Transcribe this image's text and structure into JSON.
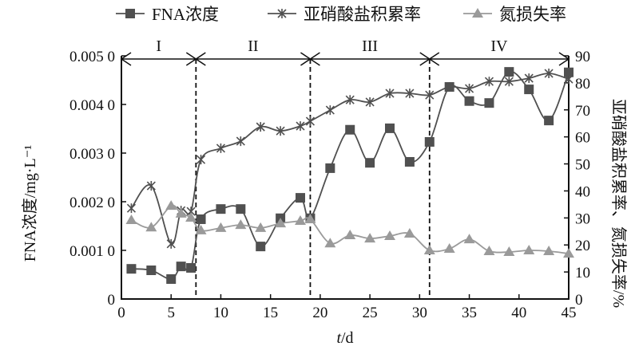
{
  "chart_data": {
    "type": "line",
    "xlabel_italic": "t",
    "xlabel_rest": "/d",
    "ylabel_left": "FNA浓度/mg·L⁻¹",
    "ylabel_right": "亚硝酸盐积累率、氮损失率/%",
    "xlim": [
      0,
      45
    ],
    "ylim_left": [
      0,
      0.005
    ],
    "ylim_right": [
      0,
      90
    ],
    "x_ticks": [
      0,
      5,
      10,
      15,
      20,
      25,
      30,
      35,
      40,
      45
    ],
    "y_left_ticks": [
      "0",
      "0.001 0",
      "0.002 0",
      "0.003 0",
      "0.004 0",
      "0.005 0"
    ],
    "y_left_tick_values": [
      0,
      0.001,
      0.002,
      0.003,
      0.004,
      0.005
    ],
    "y_right_ticks": [
      0,
      10,
      20,
      30,
      40,
      50,
      60,
      70,
      80,
      90
    ],
    "grid": false,
    "legend_position": "top",
    "stages": [
      {
        "label": "I",
        "from": 0,
        "to": 7.5
      },
      {
        "label": "II",
        "from": 7.5,
        "to": 19
      },
      {
        "label": "III",
        "from": 19,
        "to": 31
      },
      {
        "label": "IV",
        "from": 31,
        "to": 45
      }
    ],
    "x": [
      1,
      3,
      5,
      6,
      7,
      8,
      10,
      12,
      14,
      16,
      18,
      19,
      21,
      23,
      25,
      27,
      29,
      31,
      33,
      35,
      37,
      39,
      41,
      43,
      45
    ],
    "series": [
      {
        "name": "FNA浓度",
        "axis": "left",
        "marker": "square",
        "color": "#505050",
        "values": [
          0.00062,
          0.00059,
          0.00041,
          0.00067,
          0.00064,
          0.00164,
          0.00185,
          0.00185,
          0.00108,
          0.00166,
          0.00208,
          0.00166,
          0.00269,
          0.00348,
          0.0028,
          0.00351,
          0.00282,
          0.00323,
          0.00436,
          0.00407,
          0.00403,
          0.00467,
          0.00431,
          0.00367,
          0.00466
        ]
      },
      {
        "name": "亚硝酸盐积累率",
        "axis": "right",
        "marker": "star",
        "color": "#505050",
        "values": [
          33.6,
          41.9,
          20.4,
          32.7,
          32.4,
          51.6,
          55.8,
          58.4,
          63.7,
          62.2,
          64.0,
          65.8,
          69.9,
          73.7,
          72.9,
          76.1,
          76.1,
          75.5,
          78.5,
          77.9,
          80.5,
          80.5,
          81.7,
          83.5,
          81.4
        ]
      },
      {
        "name": "氮损失率",
        "axis": "right",
        "marker": "triangle",
        "color": "#9a9a9a",
        "values": [
          29.2,
          26.5,
          34.5,
          31.6,
          30.1,
          25.4,
          26.3,
          27.4,
          26.3,
          28.0,
          28.9,
          29.5,
          20.6,
          23.6,
          22.4,
          23.3,
          24.2,
          18.0,
          18.6,
          22.1,
          17.7,
          17.4,
          18.0,
          17.7,
          16.8
        ]
      }
    ]
  }
}
